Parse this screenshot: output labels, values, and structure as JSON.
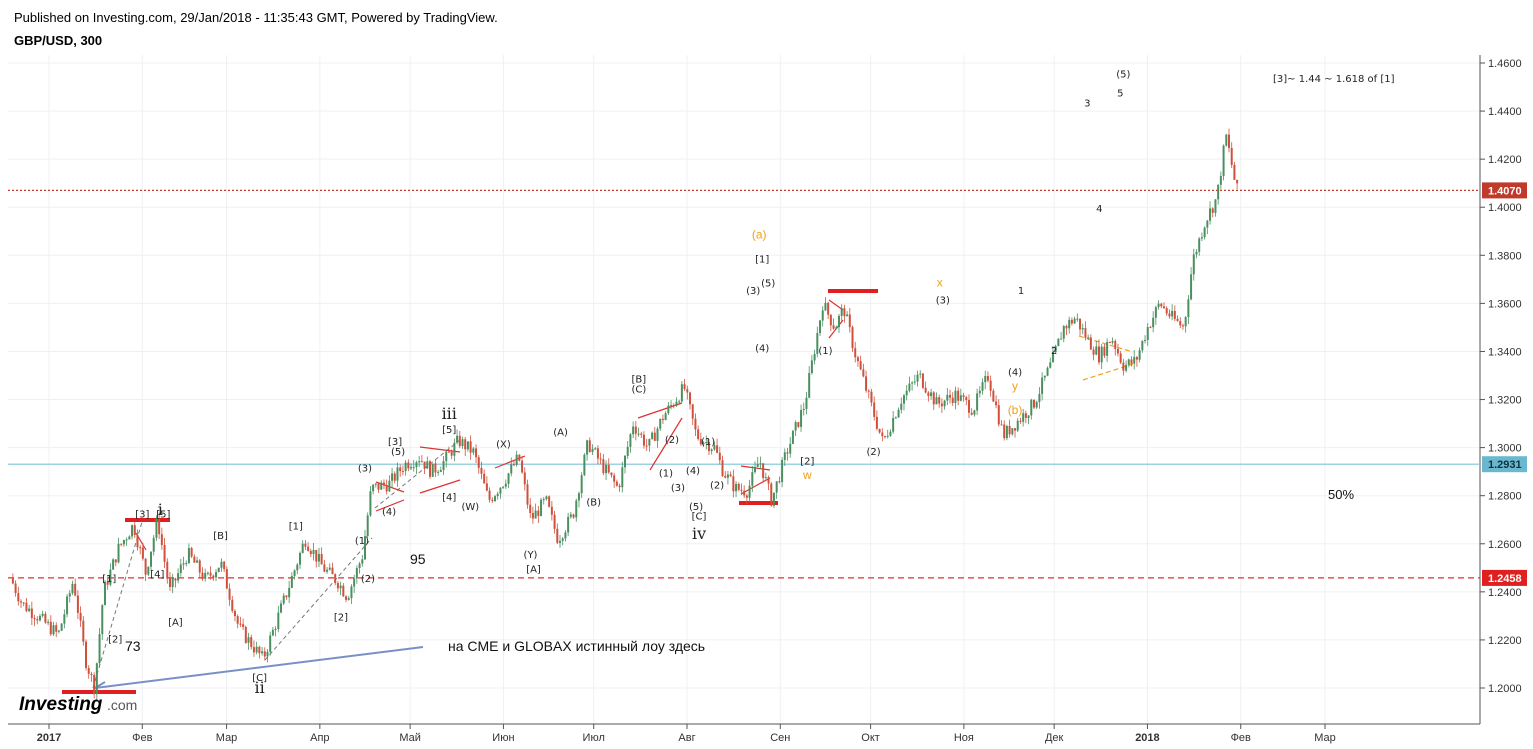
{
  "header": {
    "published": "Published on Investing.com, 29/Jan/2018 - 11:35:43 GMT, Powered by TradingView.",
    "symbol": "GBP/USD, 300"
  },
  "logo": {
    "name": "Investing",
    "suffix": ".com"
  },
  "colors": {
    "up": "#4a8f5f",
    "down": "#d0503c",
    "price_line": "#c0392b",
    "support": "#e03030",
    "hline_blue": "#7fc4d8",
    "trend": "#7a8fc8",
    "accent_orange": "#f0a020"
  },
  "chart_data": {
    "type": "candlestick",
    "instrument": "GBP/USD",
    "timeframe": "300",
    "ylim": [
      1.19,
      1.465
    ],
    "y_ticks": [
      "1.4600",
      "1.4400",
      "1.4200",
      "1.4000",
      "1.3800",
      "1.3600",
      "1.3400",
      "1.3200",
      "1.3000",
      "1.2800",
      "1.2600",
      "1.2400",
      "1.2200",
      "1.2000"
    ],
    "x_labels": [
      {
        "label": "2017",
        "bold": true,
        "day": 0
      },
      {
        "label": "Фев",
        "bold": false,
        "day": 31
      },
      {
        "label": "Мар",
        "bold": false,
        "day": 59
      },
      {
        "label": "Апр",
        "bold": false,
        "day": 90
      },
      {
        "label": "Май",
        "bold": false,
        "day": 120
      },
      {
        "label": "Июн",
        "bold": false,
        "day": 151
      },
      {
        "label": "Июл",
        "bold": false,
        "day": 181
      },
      {
        "label": "Авг",
        "bold": false,
        "day": 212
      },
      {
        "label": "Сен",
        "bold": false,
        "day": 243
      },
      {
        "label": "Окт",
        "bold": false,
        "day": 273
      },
      {
        "label": "Ноя",
        "bold": false,
        "day": 304
      },
      {
        "label": "Дек",
        "bold": false,
        "day": 334
      },
      {
        "label": "2018",
        "bold": true,
        "day": 365
      },
      {
        "label": "Фев",
        "bold": false,
        "day": 396
      },
      {
        "label": "Мар",
        "bold": false,
        "day": 424
      }
    ],
    "price_anchors": [
      {
        "day": -12,
        "price": 1.246
      },
      {
        "day": -8,
        "price": 1.235
      },
      {
        "day": -3,
        "price": 1.23
      },
      {
        "day": 4,
        "price": 1.222
      },
      {
        "day": 9,
        "price": 1.245
      },
      {
        "day": 13,
        "price": 1.212
      },
      {
        "day": 16,
        "price": 1.2
      },
      {
        "day": 19,
        "price": 1.24
      },
      {
        "day": 24,
        "price": 1.258
      },
      {
        "day": 29,
        "price": 1.268
      },
      {
        "day": 33,
        "price": 1.248
      },
      {
        "day": 37,
        "price": 1.27
      },
      {
        "day": 41,
        "price": 1.24
      },
      {
        "day": 47,
        "price": 1.256
      },
      {
        "day": 53,
        "price": 1.245
      },
      {
        "day": 58,
        "price": 1.252
      },
      {
        "day": 64,
        "price": 1.225
      },
      {
        "day": 72,
        "price": 1.212
      },
      {
        "day": 80,
        "price": 1.24
      },
      {
        "day": 86,
        "price": 1.262
      },
      {
        "day": 92,
        "price": 1.25
      },
      {
        "day": 97,
        "price": 1.244
      },
      {
        "day": 100,
        "price": 1.238
      },
      {
        "day": 105,
        "price": 1.255
      },
      {
        "day": 108,
        "price": 1.283
      },
      {
        "day": 114,
        "price": 1.285
      },
      {
        "day": 119,
        "price": 1.293
      },
      {
        "day": 124,
        "price": 1.296
      },
      {
        "day": 128,
        "price": 1.29
      },
      {
        "day": 132,
        "price": 1.294
      },
      {
        "day": 137,
        "price": 1.303
      },
      {
        "day": 142,
        "price": 1.298
      },
      {
        "day": 147,
        "price": 1.278
      },
      {
        "day": 152,
        "price": 1.286
      },
      {
        "day": 157,
        "price": 1.296
      },
      {
        "day": 161,
        "price": 1.27
      },
      {
        "day": 166,
        "price": 1.278
      },
      {
        "day": 170,
        "price": 1.262
      },
      {
        "day": 175,
        "price": 1.272
      },
      {
        "day": 180,
        "price": 1.302
      },
      {
        "day": 185,
        "price": 1.292
      },
      {
        "day": 190,
        "price": 1.283
      },
      {
        "day": 195,
        "price": 1.31
      },
      {
        "day": 200,
        "price": 1.3
      },
      {
        "day": 205,
        "price": 1.313
      },
      {
        "day": 212,
        "price": 1.325
      },
      {
        "day": 216,
        "price": 1.305
      },
      {
        "day": 222,
        "price": 1.3
      },
      {
        "day": 225,
        "price": 1.29
      },
      {
        "day": 229,
        "price": 1.283
      },
      {
        "day": 233,
        "price": 1.282
      },
      {
        "day": 237,
        "price": 1.295
      },
      {
        "day": 241,
        "price": 1.278
      },
      {
        "day": 246,
        "price": 1.298
      },
      {
        "day": 252,
        "price": 1.318
      },
      {
        "day": 258,
        "price": 1.36
      },
      {
        "day": 262,
        "price": 1.35
      },
      {
        "day": 265,
        "price": 1.358
      },
      {
        "day": 269,
        "price": 1.338
      },
      {
        "day": 274,
        "price": 1.318
      },
      {
        "day": 278,
        "price": 1.302
      },
      {
        "day": 284,
        "price": 1.32
      },
      {
        "day": 290,
        "price": 1.33
      },
      {
        "day": 296,
        "price": 1.318
      },
      {
        "day": 302,
        "price": 1.322
      },
      {
        "day": 308,
        "price": 1.316
      },
      {
        "day": 313,
        "price": 1.33
      },
      {
        "day": 318,
        "price": 1.305
      },
      {
        "day": 322,
        "price": 1.31
      },
      {
        "day": 328,
        "price": 1.318
      },
      {
        "day": 334,
        "price": 1.335
      },
      {
        "day": 338,
        "price": 1.35
      },
      {
        "day": 342,
        "price": 1.354
      },
      {
        "day": 346,
        "price": 1.345
      },
      {
        "day": 350,
        "price": 1.338
      },
      {
        "day": 354,
        "price": 1.346
      },
      {
        "day": 358,
        "price": 1.334
      },
      {
        "day": 362,
        "price": 1.336
      },
      {
        "day": 366,
        "price": 1.35
      },
      {
        "day": 370,
        "price": 1.36
      },
      {
        "day": 374,
        "price": 1.354
      },
      {
        "day": 378,
        "price": 1.35
      },
      {
        "day": 381,
        "price": 1.378
      },
      {
        "day": 385,
        "price": 1.394
      },
      {
        "day": 389,
        "price": 1.404
      },
      {
        "day": 392,
        "price": 1.43
      },
      {
        "day": 394,
        "price": 1.417
      },
      {
        "day": 395.5,
        "price": 1.407
      }
    ],
    "current_price": {
      "value": 1.407,
      "label": "1.4070"
    },
    "hlines": [
      {
        "value": 1.2931,
        "label": "1.2931",
        "style": "solid",
        "color": "#7fc4d8"
      },
      {
        "value": 1.2458,
        "label": "1.2458",
        "style": "dashed",
        "color": "#e03030"
      }
    ],
    "notes": [
      {
        "text": "на CME и GLOBAX  истинный лоу здесь"
      },
      {
        "text": "[3]~ 1.44 ~ 1.618 of [1]"
      },
      {
        "text": "95"
      },
      {
        "text": "73"
      },
      {
        "text": "50%"
      }
    ],
    "wave_labels": [
      {
        "text": "i",
        "day": 37,
        "price": 1.272,
        "kind": "big"
      },
      {
        "text": "[3]",
        "day": 31,
        "price": 1.271,
        "kind": "small"
      },
      {
        "text": "[5]",
        "day": 38,
        "price": 1.271,
        "kind": "small"
      },
      {
        "text": "[1]",
        "day": 20,
        "price": 1.244,
        "kind": "small"
      },
      {
        "text": "[2]",
        "day": 22,
        "price": 1.219,
        "kind": "small"
      },
      {
        "text": "[4]",
        "day": 36,
        "price": 1.246,
        "kind": "small"
      },
      {
        "text": "[A]",
        "day": 42,
        "price": 1.226,
        "kind": "small"
      },
      {
        "text": "[B]",
        "day": 57,
        "price": 1.262,
        "kind": "small"
      },
      {
        "text": "[C]",
        "day": 70,
        "price": 1.203,
        "kind": "small"
      },
      {
        "text": "ii",
        "day": 70,
        "price": 1.198,
        "kind": "big"
      },
      {
        "text": "[1]",
        "day": 82,
        "price": 1.266,
        "kind": "small"
      },
      {
        "text": "[2]",
        "day": 97,
        "price": 1.228,
        "kind": "small"
      },
      {
        "text": "(1)",
        "day": 104,
        "price": 1.26,
        "kind": "small"
      },
      {
        "text": "(2)",
        "day": 106,
        "price": 1.244,
        "kind": "small"
      },
      {
        "text": "(3)",
        "day": 105,
        "price": 1.29,
        "kind": "small"
      },
      {
        "text": "(4)",
        "day": 113,
        "price": 1.272,
        "kind": "small"
      },
      {
        "text": "(5)",
        "day": 116,
        "price": 1.297,
        "kind": "small"
      },
      {
        "text": "[3]",
        "day": 115,
        "price": 1.301,
        "kind": "small"
      },
      {
        "text": "[4]",
        "day": 133,
        "price": 1.278,
        "kind": "small"
      },
      {
        "text": "[5]",
        "day": 133,
        "price": 1.306,
        "kind": "small"
      },
      {
        "text": "iii",
        "day": 133,
        "price": 1.312,
        "kind": "big"
      },
      {
        "text": "(W)",
        "day": 140,
        "price": 1.274,
        "kind": "small"
      },
      {
        "text": "(X)",
        "day": 151,
        "price": 1.3,
        "kind": "small"
      },
      {
        "text": "(A)",
        "day": 170,
        "price": 1.305,
        "kind": "small"
      },
      {
        "text": "(Y)",
        "day": 160,
        "price": 1.254,
        "kind": "small"
      },
      {
        "text": "[A]",
        "day": 161,
        "price": 1.248,
        "kind": "small"
      },
      {
        "text": "(B)",
        "day": 181,
        "price": 1.276,
        "kind": "small"
      },
      {
        "text": "[B]",
        "day": 196,
        "price": 1.327,
        "kind": "small"
      },
      {
        "text": "(C)",
        "day": 196,
        "price": 1.323,
        "kind": "small"
      },
      {
        "text": "(2)",
        "day": 207,
        "price": 1.302,
        "kind": "small"
      },
      {
        "text": "(1)",
        "day": 205,
        "price": 1.288,
        "kind": "small"
      },
      {
        "text": "(3)",
        "day": 209,
        "price": 1.282,
        "kind": "small"
      },
      {
        "text": "(4)",
        "day": 214,
        "price": 1.289,
        "kind": "small"
      },
      {
        "text": "(1)",
        "day": 219,
        "price": 1.301,
        "kind": "small"
      },
      {
        "text": "(2)",
        "day": 222,
        "price": 1.283,
        "kind": "small"
      },
      {
        "text": "(5)",
        "day": 215,
        "price": 1.274,
        "kind": "small"
      },
      {
        "text": "[C]",
        "day": 216,
        "price": 1.27,
        "kind": "small"
      },
      {
        "text": "iv",
        "day": 216,
        "price": 1.262,
        "kind": "big"
      },
      {
        "text": "(3)",
        "day": 234,
        "price": 1.364,
        "kind": "small"
      },
      {
        "text": "(5)",
        "day": 239,
        "price": 1.367,
        "kind": "small"
      },
      {
        "text": "(4)",
        "day": 237,
        "price": 1.34,
        "kind": "small"
      },
      {
        "text": "[1]",
        "day": 237,
        "price": 1.377,
        "kind": "small"
      },
      {
        "text": "(1)",
        "day": 258,
        "price": 1.339,
        "kind": "small"
      },
      {
        "text": "[2]",
        "day": 252,
        "price": 1.293,
        "kind": "small"
      },
      {
        "text": "(2)",
        "day": 274,
        "price": 1.297,
        "kind": "small"
      },
      {
        "text": "(3)",
        "day": 297,
        "price": 1.36,
        "kind": "small"
      },
      {
        "text": "(4)",
        "day": 321,
        "price": 1.33,
        "kind": "small"
      },
      {
        "text": "1",
        "day": 323,
        "price": 1.364,
        "kind": "small"
      },
      {
        "text": "2",
        "day": 334,
        "price": 1.339,
        "kind": "small"
      },
      {
        "text": "3",
        "day": 345,
        "price": 1.442,
        "kind": "small"
      },
      {
        "text": "4",
        "day": 349,
        "price": 1.398,
        "kind": "small"
      },
      {
        "text": "5",
        "day": 356,
        "price": 1.446,
        "kind": "small"
      },
      {
        "text": "(5)",
        "day": 357,
        "price": 1.454,
        "kind": "small"
      },
      {
        "text": "(a)",
        "day": 236,
        "price": 1.387,
        "kind": "orange"
      },
      {
        "text": "w",
        "day": 252,
        "price": 1.287,
        "kind": "orange"
      },
      {
        "text": "x",
        "day": 296,
        "price": 1.367,
        "kind": "orange"
      },
      {
        "text": "y",
        "day": 321,
        "price": 1.324,
        "kind": "orange"
      },
      {
        "text": "(b)",
        "day": 321,
        "price": 1.314,
        "kind": "orange"
      }
    ]
  }
}
